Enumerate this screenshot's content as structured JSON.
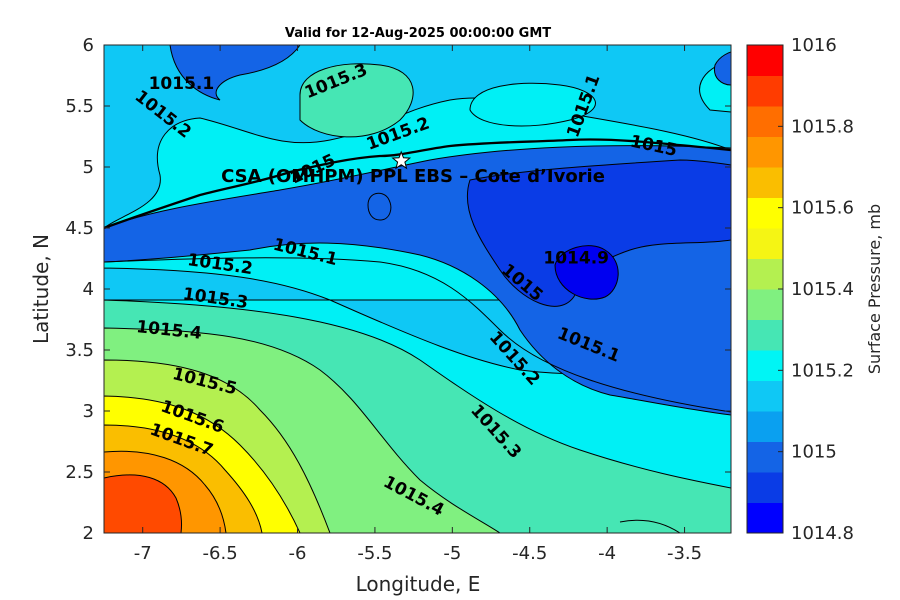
{
  "chart_data": {
    "type": "contour",
    "title": "Valid for 12-Aug-2025 00:00:00 GMT",
    "xlabel": "Longitude, E",
    "ylabel": "Latitude, N",
    "xlim": [
      -7.25,
      -3.2
    ],
    "ylim": [
      2,
      6
    ],
    "xticks": [
      -7,
      -6.5,
      -6,
      -5.5,
      -5,
      -4.5,
      -4,
      -3.5
    ],
    "yticks": [
      2,
      2.5,
      3,
      3.5,
      4,
      4.5,
      5,
      5.5,
      6
    ],
    "xtick_labels": [
      "-7",
      "-6.5",
      "-6",
      "-5.5",
      "-5",
      "-4.5",
      "-4",
      "-3.5"
    ],
    "ytick_labels": [
      "2",
      "2.5",
      "3",
      "3.5",
      "4",
      "4.5",
      "5",
      "5.5",
      "6"
    ],
    "colorbar": {
      "label": "Surface Pressure, mb",
      "min": 1014.8,
      "max": 1016,
      "step": 0.1,
      "ticks": [
        1014.8,
        1015,
        1015.2,
        1015.4,
        1015.6,
        1015.8,
        1016
      ],
      "tick_labels": [
        "1014.8",
        "1015",
        "1015.2",
        "1015.4",
        "1015.6",
        "1015.8",
        "1016"
      ],
      "colors": [
        "#0000ff",
        "#0a3ce6",
        "#1464e6",
        "#0aa0f0",
        "#0fc8f5",
        "#00f5f5",
        "#46e6b4",
        "#80f080",
        "#b4f050",
        "#f5f514",
        "#ffff00",
        "#fabe00",
        "#ff9600",
        "#ff6e00",
        "#ff3c00",
        "#ff0000"
      ]
    },
    "contour_labels": [
      {
        "text": "1015.1",
        "lon": -6.75,
        "lat": 5.68,
        "rot": 0
      },
      {
        "text": "1015.3",
        "lon": -5.75,
        "lat": 5.7,
        "rot": -22
      },
      {
        "text": "1015.2",
        "lon": -6.87,
        "lat": 5.43,
        "rot": 38
      },
      {
        "text": "1015.2",
        "lon": -5.35,
        "lat": 5.27,
        "rot": -20
      },
      {
        "text": "1015.1",
        "lon": -4.15,
        "lat": 5.5,
        "rot": -70
      },
      {
        "text": "1015",
        "lon": -3.7,
        "lat": 5.17,
        "rot": 12
      },
      {
        "text": "1015",
        "lon": -5.9,
        "lat": 4.98,
        "rot": -25
      },
      {
        "text": "1015.1",
        "lon": -5.95,
        "lat": 4.3,
        "rot": 14
      },
      {
        "text": "1015.2",
        "lon": -6.5,
        "lat": 4.2,
        "rot": 8
      },
      {
        "text": "1014.9",
        "lon": -4.2,
        "lat": 4.25,
        "rot": 0
      },
      {
        "text": "1015",
        "lon": -4.55,
        "lat": 4.05,
        "rot": 40
      },
      {
        "text": "1015.3",
        "lon": -6.53,
        "lat": 3.92,
        "rot": 8
      },
      {
        "text": "1015.1",
        "lon": -4.12,
        "lat": 3.54,
        "rot": 22
      },
      {
        "text": "1015.4",
        "lon": -6.83,
        "lat": 3.66,
        "rot": 6
      },
      {
        "text": "1015.2",
        "lon": -4.6,
        "lat": 3.43,
        "rot": 48
      },
      {
        "text": "1015.5",
        "lon": -6.6,
        "lat": 3.24,
        "rot": 14
      },
      {
        "text": "1015.6",
        "lon": -6.68,
        "lat": 2.95,
        "rot": 20
      },
      {
        "text": "1015.3",
        "lon": -4.72,
        "lat": 2.83,
        "rot": 48
      },
      {
        "text": "1015.7",
        "lon": -6.75,
        "lat": 2.76,
        "rot": 20
      },
      {
        "text": "1015.4",
        "lon": -5.25,
        "lat": 2.3,
        "rot": 28
      }
    ],
    "site": {
      "label": "CSA (OMHPM) PPL EBS  – Cote d’Ivorie",
      "lon": -5.33,
      "lat": 5.05
    }
  }
}
